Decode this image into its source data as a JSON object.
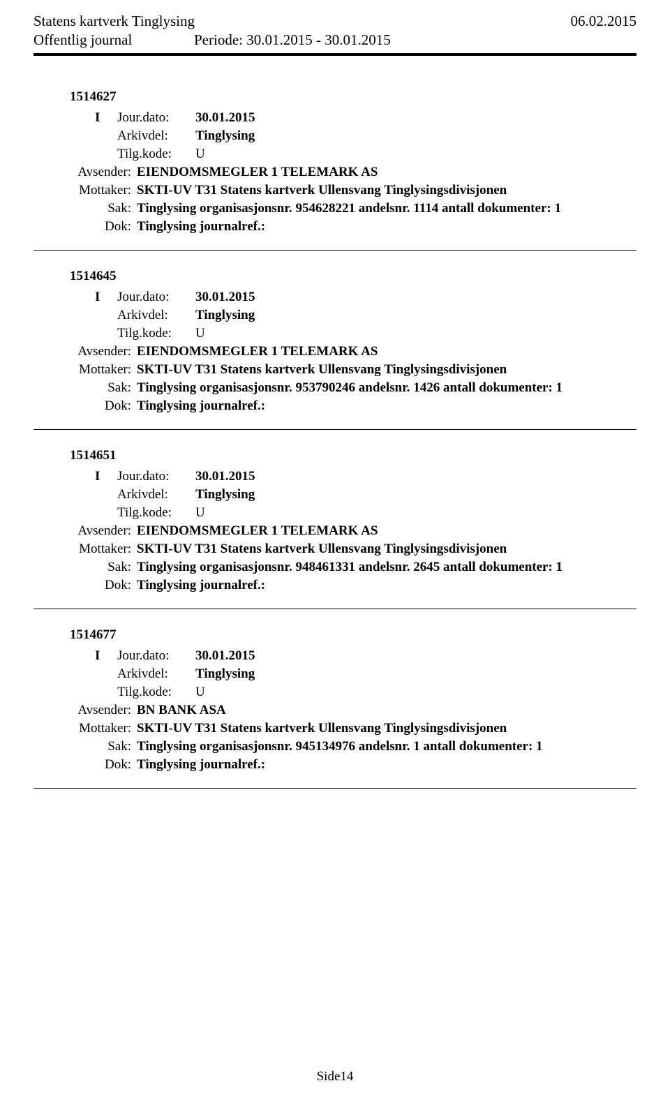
{
  "header": {
    "org": "Statens kartverk Tinglysing",
    "date": "06.02.2015",
    "journal": "Offentlig journal",
    "period_label": "Periode:",
    "period_value": "30.01.2015 - 30.01.2015"
  },
  "entries": [
    {
      "id": "1514627",
      "type": "I",
      "jourdato_label": "Jour.dato:",
      "jourdato": "30.01.2015",
      "arkivdel_label": "Arkivdel:",
      "arkivdel": "Tinglysing",
      "tilgkode_label": "Tilg.kode:",
      "tilgkode": "U",
      "avsender_label": "Avsender:",
      "avsender": "EIENDOMSMEGLER 1 TELEMARK AS",
      "mottaker_label": "Mottaker:",
      "mottaker": "SKTI-UV T31 Statens kartverk Ullensvang Tinglysingsdivisjonen",
      "sak_label": "Sak:",
      "sak": "Tinglysing organisasjonsnr. 954628221 andelsnr. 1114 antall dokumenter: 1",
      "dok_label": "Dok:",
      "dok": "Tinglysing journalref.:"
    },
    {
      "id": "1514645",
      "type": "I",
      "jourdato_label": "Jour.dato:",
      "jourdato": "30.01.2015",
      "arkivdel_label": "Arkivdel:",
      "arkivdel": "Tinglysing",
      "tilgkode_label": "Tilg.kode:",
      "tilgkode": "U",
      "avsender_label": "Avsender:",
      "avsender": "EIENDOMSMEGLER 1 TELEMARK AS",
      "mottaker_label": "Mottaker:",
      "mottaker": "SKTI-UV T31 Statens kartverk Ullensvang Tinglysingsdivisjonen",
      "sak_label": "Sak:",
      "sak": "Tinglysing organisasjonsnr. 953790246 andelsnr. 1426 antall dokumenter: 1",
      "dok_label": "Dok:",
      "dok": "Tinglysing journalref.:"
    },
    {
      "id": "1514651",
      "type": "I",
      "jourdato_label": "Jour.dato:",
      "jourdato": "30.01.2015",
      "arkivdel_label": "Arkivdel:",
      "arkivdel": "Tinglysing",
      "tilgkode_label": "Tilg.kode:",
      "tilgkode": "U",
      "avsender_label": "Avsender:",
      "avsender": "EIENDOMSMEGLER 1 TELEMARK AS",
      "mottaker_label": "Mottaker:",
      "mottaker": "SKTI-UV T31 Statens kartverk Ullensvang Tinglysingsdivisjonen",
      "sak_label": "Sak:",
      "sak": "Tinglysing organisasjonsnr. 948461331 andelsnr. 2645 antall dokumenter: 1",
      "dok_label": "Dok:",
      "dok": "Tinglysing journalref.:"
    },
    {
      "id": "1514677",
      "type": "I",
      "jourdato_label": "Jour.dato:",
      "jourdato": "30.01.2015",
      "arkivdel_label": "Arkivdel:",
      "arkivdel": "Tinglysing",
      "tilgkode_label": "Tilg.kode:",
      "tilgkode": "U",
      "avsender_label": "Avsender:",
      "avsender": "BN BANK ASA",
      "mottaker_label": "Mottaker:",
      "mottaker": "SKTI-UV T31 Statens kartverk Ullensvang Tinglysingsdivisjonen",
      "sak_label": "Sak:",
      "sak": "Tinglysing organisasjonsnr. 945134976 andelsnr. 1 antall dokumenter: 1",
      "dok_label": "Dok:",
      "dok": "Tinglysing journalref.:"
    }
  ],
  "footer": {
    "page": "Side14"
  }
}
